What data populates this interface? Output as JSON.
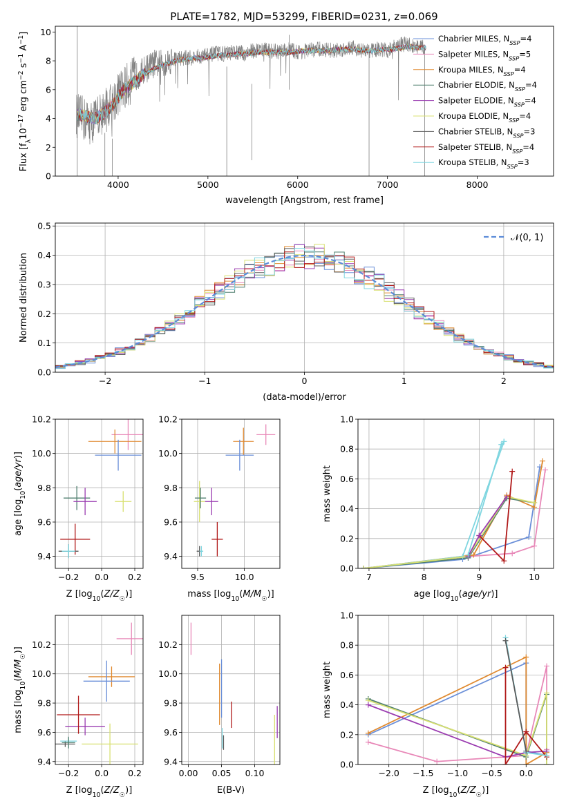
{
  "figure": {
    "title": "PLATE=1782, MJD=53299, FIBERID=0231, z=0.069"
  },
  "colors": {
    "Chabrier MILES": "#6a8fd8",
    "Salpeter MILES": "#e888b8",
    "Kroupa MILES": "#e08a30",
    "Chabrier ELODIE": "#4f7f6f",
    "Salpeter ELODIE": "#9a3bb0",
    "Kroupa ELODIE": "#d8e070",
    "Chabrier STELIB": "#5a5a5a",
    "Salpeter STELIB": "#b01818",
    "Kroupa STELIB": "#7fd6e0",
    "data": "#808080",
    "normal": "#5b8bd8"
  },
  "chart_data": [
    {
      "type": "line",
      "xlabel": "wavelength [Angstrom, rest frame]",
      "ylabel": "Flux [f_λ10^-17 erg cm^-2 s^-1 A^-1]",
      "xlim": [
        3300,
        8850
      ],
      "ylim": [
        0,
        10.4
      ],
      "xticks": [
        4000,
        5000,
        6000,
        7000,
        8000
      ],
      "yticks": [
        0,
        2,
        4,
        6,
        8,
        10
      ],
      "grid": false,
      "legend_position": "right",
      "legend": [
        {
          "model": "Chabrier MILES",
          "nssp": "4"
        },
        {
          "model": "Salpeter MILES",
          "nssp": "5"
        },
        {
          "model": "Kroupa MILES",
          "nssp": "4"
        },
        {
          "model": "Chabrier ELODIE",
          "nssp": "4"
        },
        {
          "model": "Salpeter ELODIE",
          "nssp": "4"
        },
        {
          "model": "Kroupa ELODIE",
          "nssp": "4"
        },
        {
          "model": "Chabrier STELIB",
          "nssp": "3"
        },
        {
          "model": "Salpeter STELIB",
          "nssp": "4"
        },
        {
          "model": "Kroupa STELIB",
          "nssp": "3"
        }
      ],
      "data_spectrum": {
        "x": [
          3540,
          3600,
          3700,
          3800,
          3900,
          4000,
          4100,
          4200,
          4300,
          4400,
          4500,
          4600,
          4700,
          4800,
          4900,
          5000,
          5100,
          5200,
          5300,
          5400,
          5500,
          5600,
          5700,
          5800,
          5900,
          6000,
          6100,
          6200,
          6300,
          6400,
          6500,
          6600,
          6700,
          6800,
          6900,
          7000,
          7100,
          7200,
          7300,
          7400
        ],
        "y": [
          4.2,
          4.0,
          3.7,
          4.3,
          4.8,
          5.7,
          6.3,
          6.9,
          7.4,
          7.8,
          7.8,
          8.1,
          8.2,
          8.2,
          8.3,
          8.4,
          8.5,
          8.5,
          8.6,
          8.5,
          8.7,
          8.8,
          8.7,
          8.6,
          8.8,
          8.6,
          8.7,
          8.8,
          8.8,
          8.7,
          8.8,
          9.0,
          8.7,
          8.7,
          8.8,
          8.7,
          9.0,
          9.2,
          9.0,
          8.9
        ]
      },
      "model_spectrum": {
        "x": [
          3550,
          3650,
          3750,
          3850,
          3950,
          4050,
          4150,
          4250,
          4350,
          4450,
          4550,
          4650,
          4750,
          4850,
          4950,
          5050,
          5150,
          5250,
          5350,
          5450,
          5550,
          5650,
          5750,
          5850,
          5950,
          6050,
          6150,
          6250,
          6350,
          6450,
          6550,
          6650,
          6750,
          6850,
          6950,
          7050,
          7150,
          7250,
          7350,
          7450
        ],
        "y": [
          4.3,
          4.1,
          4.0,
          4.4,
          5.0,
          5.9,
          6.4,
          6.9,
          7.3,
          7.6,
          7.8,
          8.0,
          8.1,
          8.2,
          8.2,
          8.3,
          8.4,
          8.4,
          8.5,
          8.5,
          8.6,
          8.6,
          8.6,
          8.6,
          8.6,
          8.7,
          8.7,
          8.7,
          8.7,
          8.8,
          8.8,
          8.8,
          8.7,
          8.7,
          8.8,
          8.8,
          8.9,
          9.0,
          8.9,
          8.9
        ]
      }
    },
    {
      "type": "histogram",
      "xlabel": "(data-model)/error",
      "ylabel": "Normed distribution",
      "xlim": [
        -2.5,
        2.5
      ],
      "ylim": [
        0,
        0.51
      ],
      "xticks": [
        -2,
        -1,
        0,
        1,
        2
      ],
      "yticks": [
        0.0,
        0.1,
        0.2,
        0.3,
        0.4,
        0.5
      ],
      "grid": true,
      "legend_position": "top-right",
      "reference_curve": "𝒩(0, 1)",
      "bin_width": 0.1,
      "bin_start": -2.5
    },
    {
      "type": "errorbar",
      "xlabel": "Z [log10(Z/Z☉)]",
      "ylabel": "age  [log10(age/yr)]",
      "xlim": [
        -0.28,
        0.25
      ],
      "ylim": [
        9.33,
        10.2
      ],
      "xticks": [
        -0.2,
        0.0,
        0.2
      ],
      "yticks": [
        9.4,
        9.6,
        9.8,
        10.0,
        10.2
      ],
      "grid": true,
      "points": [
        {
          "model": "Salpeter MILES",
          "x": 0.16,
          "xerr": 0.1,
          "y": 10.11,
          "yerr": 0.09
        },
        {
          "model": "Kroupa MILES",
          "x": 0.08,
          "xerr": 0.16,
          "y": 10.07,
          "yerr": 0.07
        },
        {
          "model": "Chabrier MILES",
          "x": 0.1,
          "xerr": 0.14,
          "y": 9.99,
          "yerr": 0.09
        },
        {
          "model": "Chabrier ELODIE",
          "x": -0.15,
          "xerr": 0.08,
          "y": 9.74,
          "yerr": 0.07
        },
        {
          "model": "Kroupa ELODIE",
          "x": 0.13,
          "xerr": 0.05,
          "y": 9.72,
          "yerr": 0.06
        },
        {
          "model": "Salpeter ELODIE",
          "x": -0.1,
          "xerr": 0.07,
          "y": 9.72,
          "yerr": 0.08
        },
        {
          "model": "Salpeter STELIB",
          "x": -0.16,
          "xerr": 0.09,
          "y": 9.5,
          "yerr": 0.09
        },
        {
          "model": "Chabrier STELIB",
          "x": -0.2,
          "xerr": 0.06,
          "y": 9.43,
          "yerr": 0.04
        },
        {
          "model": "Kroupa STELIB",
          "x": -0.2,
          "xerr": 0.04,
          "y": 9.43,
          "yerr": 0.04
        }
      ]
    },
    {
      "type": "errorbar",
      "xlabel": "mass [log10(M/M☉)]",
      "ylabel": "",
      "xlim": [
        9.33,
        10.38
      ],
      "ylim": [
        9.33,
        10.2
      ],
      "xticks": [
        9.5,
        10.0
      ],
      "yticks": [
        9.4,
        9.6,
        9.8,
        10.0,
        10.2
      ],
      "grid": true,
      "points": [
        {
          "model": "Salpeter MILES",
          "x": 10.23,
          "xerr": 0.1,
          "y": 10.11,
          "yerr": 0.06
        },
        {
          "model": "Kroupa MILES",
          "x": 9.99,
          "xerr": 0.11,
          "y": 10.07,
          "yerr": 0.08
        },
        {
          "model": "Chabrier MILES",
          "x": 9.95,
          "xerr": 0.15,
          "y": 9.99,
          "yerr": 0.09
        },
        {
          "model": "Kroupa ELODIE",
          "x": 9.52,
          "xerr": 0.06,
          "y": 9.72,
          "yerr": 0.12
        },
        {
          "model": "Salpeter ELODIE",
          "x": 9.65,
          "xerr": 0.07,
          "y": 9.72,
          "yerr": 0.08
        },
        {
          "model": "Chabrier ELODIE",
          "x": 9.53,
          "xerr": 0.06,
          "y": 9.74,
          "yerr": 0.06
        },
        {
          "model": "Salpeter STELIB",
          "x": 9.71,
          "xerr": 0.06,
          "y": 9.5,
          "yerr": 0.1
        },
        {
          "model": "Chabrier STELIB",
          "x": 9.52,
          "xerr": 0.03,
          "y": 9.43,
          "yerr": 0.03
        },
        {
          "model": "Kroupa STELIB",
          "x": 9.54,
          "xerr": 0.02,
          "y": 9.43,
          "yerr": 0.03
        }
      ]
    },
    {
      "type": "line",
      "xlabel": "age  [log10(age/yr)]",
      "ylabel": "mass weight",
      "xlim": [
        6.8,
        10.35
      ],
      "ylim": [
        0,
        1.0
      ],
      "xticks": [
        7,
        8,
        9,
        10
      ],
      "yticks": [
        0.0,
        0.2,
        0.4,
        0.6,
        0.8,
        1.0
      ],
      "grid": true,
      "series": [
        {
          "name": "Chabrier MILES",
          "x": [
            6.9,
            8.7,
            9.9,
            10.1
          ],
          "y": [
            0.0,
            0.06,
            0.21,
            0.68
          ]
        },
        {
          "name": "Salpeter MILES",
          "x": [
            6.9,
            8.8,
            9.6,
            10.0,
            10.2
          ],
          "y": [
            0.0,
            0.08,
            0.1,
            0.15,
            0.66
          ]
        },
        {
          "name": "Kroupa MILES",
          "x": [
            6.9,
            8.9,
            9.5,
            10.0,
            10.15
          ],
          "y": [
            0.0,
            0.09,
            0.49,
            0.41,
            0.72
          ]
        },
        {
          "name": "Chabrier ELODIE",
          "x": [
            6.9,
            8.8,
            9.5,
            10.0
          ],
          "y": [
            0.0,
            0.07,
            0.47,
            0.44
          ]
        },
        {
          "name": "Kroupa STELIB",
          "x": [
            6.9,
            8.7,
            9.45
          ],
          "y": [
            0.0,
            0.08,
            0.85
          ]
        }
      ]
    },
    {
      "type": "errorbar",
      "xlabel": "Z [log10(Z/Z☉)]",
      "ylabel": "mass [log10(M/M☉)]",
      "xlim": [
        -0.28,
        0.25
      ],
      "ylim": [
        9.38,
        10.4
      ],
      "xticks": [
        -0.2,
        0.0,
        0.2
      ],
      "yticks": [
        9.4,
        9.6,
        9.8,
        10.0,
        10.2
      ],
      "grid": true
    },
    {
      "type": "errorbar",
      "xlabel": "E(B-V)",
      "ylabel": "",
      "xlim": [
        -0.01,
        0.138
      ],
      "ylim": [
        9.38,
        10.4
      ],
      "xticks": [
        0.0,
        0.05,
        0.1
      ],
      "yticks": [
        9.4,
        9.6,
        9.8,
        10.0,
        10.2
      ],
      "grid": true
    },
    {
      "type": "line",
      "xlabel": "Z [log10(Z/Z☉)]",
      "ylabel": "mass weight",
      "xlim": [
        -2.45,
        0.4
      ],
      "ylim": [
        0,
        1.0
      ],
      "xticks": [
        -2.0,
        -1.5,
        -1.0,
        -0.5,
        0.0
      ],
      "yticks": [
        0.0,
        0.2,
        0.4,
        0.6,
        0.8,
        1.0
      ],
      "grid": true
    }
  ]
}
